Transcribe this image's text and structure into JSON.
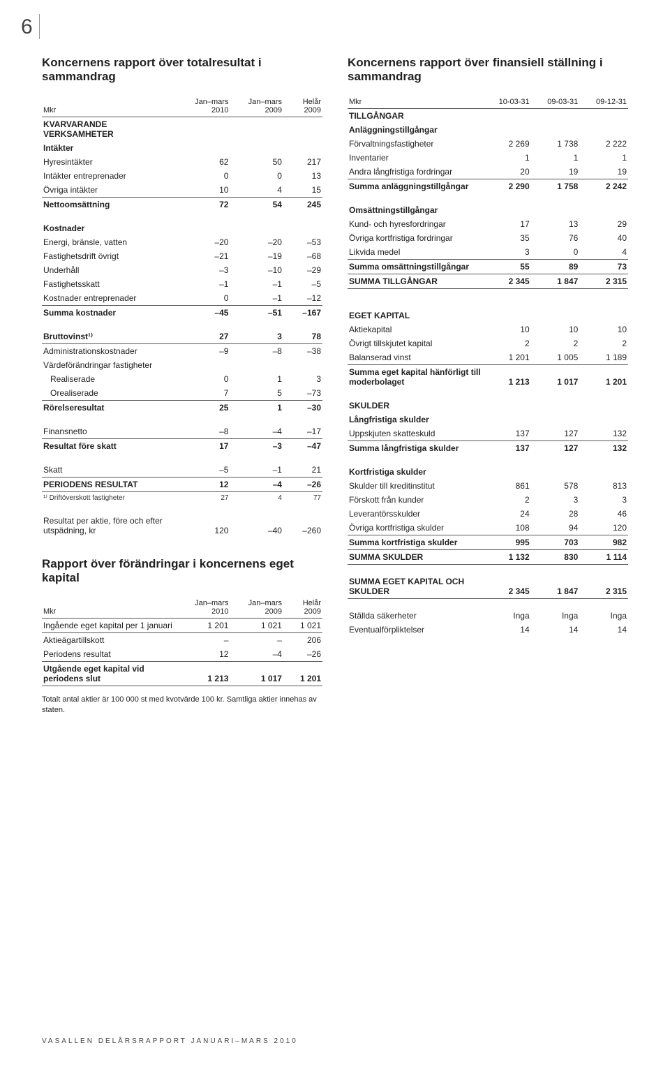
{
  "pagenum": "6",
  "footer": "VASALLEN DELÅRSRAPPORT JANUARI–MARS 2010",
  "left": {
    "title1": "Koncernens rapport över totalresultat i sammandrag",
    "title2": "Rapport över förändringar i koncernens eget kapital",
    "note": "Totalt antal aktier är 100 000 st med kvotvärde 100 kr. Samtliga aktier innehas av staten.",
    "h": {
      "mkr": "Mkr",
      "c1": "Jan–mars 2010",
      "c2": "Jan–mars 2009",
      "c3": "Helår 2009"
    },
    "rows": [
      {
        "sect": true,
        "l": "KVARVARANDE VERKSAMHETER"
      },
      {
        "sect": true,
        "l": "Intäkter"
      },
      {
        "l": "Hyresintäkter",
        "a": "62",
        "b": "50",
        "c": "217"
      },
      {
        "l": "Intäkter entreprenader",
        "a": "0",
        "b": "0",
        "c": "13"
      },
      {
        "hr": true,
        "l": "Övriga intäkter",
        "a": "10",
        "b": "4",
        "c": "15"
      },
      {
        "bold": true,
        "l": "Nettoomsättning",
        "a": "72",
        "b": "54",
        "c": "245"
      },
      {
        "spacer": true
      },
      {
        "sect": true,
        "l": "Kostnader"
      },
      {
        "l": "Energi, bränsle, vatten",
        "a": "–20",
        "b": "–20",
        "c": "–53"
      },
      {
        "l": "Fastighetsdrift övrigt",
        "a": "–21",
        "b": "–19",
        "c": "–68"
      },
      {
        "l": "Underhåll",
        "a": "–3",
        "b": "–10",
        "c": "–29"
      },
      {
        "l": "Fastighetsskatt",
        "a": "–1",
        "b": "–1",
        "c": "–5"
      },
      {
        "hr": true,
        "l": "Kostnader entreprenader",
        "a": "0",
        "b": "–1",
        "c": "–12"
      },
      {
        "bold": true,
        "l": "Summa kostnader",
        "a": "–45",
        "b": "–51",
        "c": "–167"
      },
      {
        "spacer": true
      },
      {
        "bold": true,
        "hr": true,
        "l": "Bruttovinst¹⁾",
        "a": "27",
        "b": "3",
        "c": "78"
      },
      {
        "l": "Administrationskostnader",
        "a": "–9",
        "b": "–8",
        "c": "–38"
      },
      {
        "l": "Värdeförändringar fastigheter"
      },
      {
        "indent": true,
        "l": "Realiserade",
        "a": "0",
        "b": "1",
        "c": "3"
      },
      {
        "hr": true,
        "indent": true,
        "l": "Orealiserade",
        "a": "7",
        "b": "5",
        "c": "–73"
      },
      {
        "bold": true,
        "l": "Rörelseresultat",
        "a": "25",
        "b": "1",
        "c": "–30"
      },
      {
        "spacer": true
      },
      {
        "hr": true,
        "l": "Finansnetto",
        "a": "–8",
        "b": "–4",
        "c": "–17"
      },
      {
        "bold": true,
        "l": "Resultat före skatt",
        "a": "17",
        "b": "–3",
        "c": "–47"
      },
      {
        "spacer": true
      },
      {
        "hr": true,
        "l": "Skatt",
        "a": "–5",
        "b": "–1",
        "c": "21"
      },
      {
        "hr": true,
        "bold": true,
        "l": "PERIODENS RESULTAT",
        "a": "12",
        "b": "–4",
        "c": "–26"
      },
      {
        "fn": true,
        "l": "¹⁾ Driftöverskott fastigheter",
        "a": "27",
        "b": "4",
        "c": "77"
      },
      {
        "spacer": true
      },
      {
        "l": "Resultat per aktie, före och efter utspädning, kr",
        "a": "120",
        "b": "–40",
        "c": "–260"
      }
    ],
    "rows2": [
      {
        "hr": true,
        "l": "Ingående eget kapital per 1 januari",
        "a": "1 201",
        "b": "1 021",
        "c": "1 021"
      },
      {
        "l": "Aktieägartillskott",
        "a": "–",
        "b": "–",
        "c": "206"
      },
      {
        "hr": true,
        "l": "Periodens resultat",
        "a": "12",
        "b": "–4",
        "c": "–26"
      },
      {
        "bold": true,
        "hr": true,
        "l": "Utgående eget kapital vid periodens slut",
        "a": "1 213",
        "b": "1 017",
        "c": "1 201"
      }
    ]
  },
  "right": {
    "title": "Koncernens rapport över finansiell ställning i sammandrag",
    "h": {
      "mkr": "Mkr",
      "c1": "10-03-31",
      "c2": "09-03-31",
      "c3": "09-12-31"
    },
    "rows": [
      {
        "sect": true,
        "l": "TILLGÅNGAR"
      },
      {
        "sect": true,
        "l": "Anläggningstillgångar"
      },
      {
        "l": "Förvaltningsfastigheter",
        "a": "2 269",
        "b": "1 738",
        "c": "2 222"
      },
      {
        "l": "Inventarier",
        "a": "1",
        "b": "1",
        "c": "1"
      },
      {
        "hr": true,
        "l": "Andra långfristiga fordringar",
        "a": "20",
        "b": "19",
        "c": "19"
      },
      {
        "bold": true,
        "l": "Summa anläggningstillgångar",
        "a": "2 290",
        "b": "1 758",
        "c": "2 242"
      },
      {
        "spacer": true
      },
      {
        "sect": true,
        "l": "Omsättningstillgångar"
      },
      {
        "l": "Kund- och hyresfordringar",
        "a": "17",
        "b": "13",
        "c": "29"
      },
      {
        "l": "Övriga kortfristiga fordringar",
        "a": "35",
        "b": "76",
        "c": "40"
      },
      {
        "hr": true,
        "l": "Likvida medel",
        "a": "3",
        "b": "0",
        "c": "4"
      },
      {
        "hr": true,
        "bold": true,
        "l": "Summa omsättningstillgångar",
        "a": "55",
        "b": "89",
        "c": "73"
      },
      {
        "bold": true,
        "hr": true,
        "l": "SUMMA TILLGÅNGAR",
        "a": "2 345",
        "b": "1 847",
        "c": "2 315"
      },
      {
        "spacer": true
      },
      {
        "spacer": true
      },
      {
        "sect": true,
        "l": "EGET KAPITAL"
      },
      {
        "l": "Aktiekapital",
        "a": "10",
        "b": "10",
        "c": "10"
      },
      {
        "l": "Övrigt tillskjutet kapital",
        "a": "2",
        "b": "2",
        "c": "2"
      },
      {
        "hr": true,
        "l": "Balanserad vinst",
        "a": "1 201",
        "b": "1 005",
        "c": "1 189"
      },
      {
        "bold": true,
        "l": "Summa eget kapital hänförligt till moderbolaget",
        "a": "1 213",
        "b": "1 017",
        "c": "1 201"
      },
      {
        "spacer": true
      },
      {
        "sect": true,
        "l": "SKULDER"
      },
      {
        "sect": true,
        "l": "Långfristiga skulder"
      },
      {
        "hr": true,
        "l": "Uppskjuten skatteskuld",
        "a": "137",
        "b": "127",
        "c": "132"
      },
      {
        "bold": true,
        "l": "Summa långfristiga skulder",
        "a": "137",
        "b": "127",
        "c": "132"
      },
      {
        "spacer": true
      },
      {
        "sect": true,
        "l": "Kortfristiga skulder"
      },
      {
        "l": "Skulder till kreditinstitut",
        "a": "861",
        "b": "578",
        "c": "813"
      },
      {
        "l": "Förskott från kunder",
        "a": "2",
        "b": "3",
        "c": "3"
      },
      {
        "l": "Leverantörsskulder",
        "a": "24",
        "b": "28",
        "c": "46"
      },
      {
        "hr": true,
        "l": "Övriga kortfristiga skulder",
        "a": "108",
        "b": "94",
        "c": "120"
      },
      {
        "hr": true,
        "bold": true,
        "l": "Summa kortfristiga skulder",
        "a": "995",
        "b": "703",
        "c": "982"
      },
      {
        "bold": true,
        "hr": true,
        "l": "SUMMA SKULDER",
        "a": "1 132",
        "b": "830",
        "c": "1 114"
      },
      {
        "spacer": true
      },
      {
        "bold": true,
        "hr": true,
        "l": "SUMMA EGET KAPITAL OCH SKULDER",
        "a": "2 345",
        "b": "1 847",
        "c": "2 315"
      },
      {
        "spacer": true
      },
      {
        "l": "Ställda säkerheter",
        "a": "Inga",
        "b": "Inga",
        "c": "Inga"
      },
      {
        "l": "Eventualförpliktelser",
        "a": "14",
        "b": "14",
        "c": "14"
      }
    ]
  }
}
